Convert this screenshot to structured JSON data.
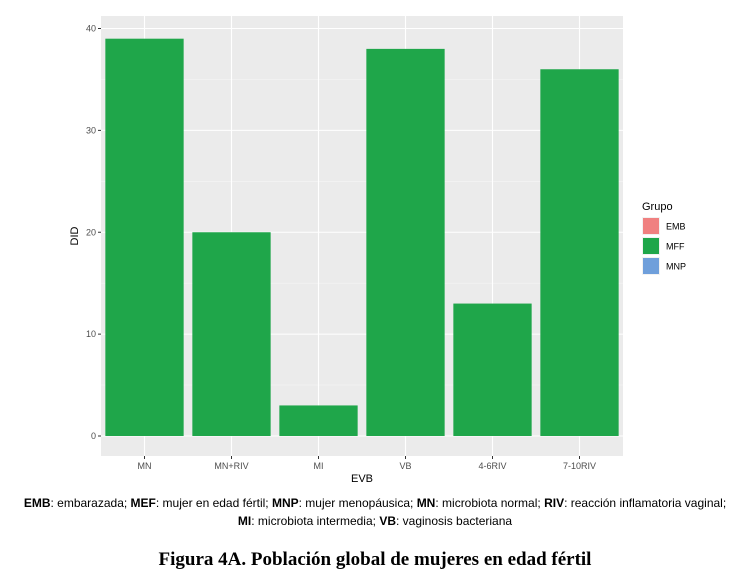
{
  "chart_data": {
    "type": "bar",
    "categories": [
      "MN",
      "MN+RIV",
      "MI",
      "VB",
      "4-6RIV",
      "7-10RIV"
    ],
    "series": [
      {
        "name": "MFF",
        "values": [
          39,
          20,
          3,
          38,
          13,
          36
        ]
      }
    ],
    "xlabel": "EVB",
    "ylabel": "DID",
    "ylim": [
      0,
      40
    ],
    "yticks": [
      0,
      10,
      20,
      30,
      40
    ],
    "grid": true,
    "legend": {
      "title": "Grupo",
      "placement": "right",
      "items": [
        {
          "label": "EMB",
          "color": "#f08080"
        },
        {
          "label": "MFF",
          "color": "#1fa64a"
        },
        {
          "label": "MNP",
          "color": "#6f9fdb"
        }
      ]
    },
    "bar_color": "#1fa64a",
    "panel_color": "#ebebeb"
  },
  "caption": {
    "line1": [
      {
        "abbr": "EMB",
        "text": ": embarazada; "
      },
      {
        "abbr": "MEF",
        "text": ": mujer en edad fértil; "
      },
      {
        "abbr": "MNP",
        "text": ": mujer menopáusica; "
      },
      {
        "abbr": "MN",
        "text": ": microbiota normal; "
      },
      {
        "abbr": "RIV",
        "text": ": reacción inflamatoria vaginal;"
      }
    ],
    "line2": [
      {
        "abbr": "MI",
        "text": ": microbiota intermedia; "
      },
      {
        "abbr": "VB",
        "text": ": vaginosis bacteriana"
      }
    ]
  },
  "figure_title": "Figura 4A. Población global de mujeres en edad fértil"
}
